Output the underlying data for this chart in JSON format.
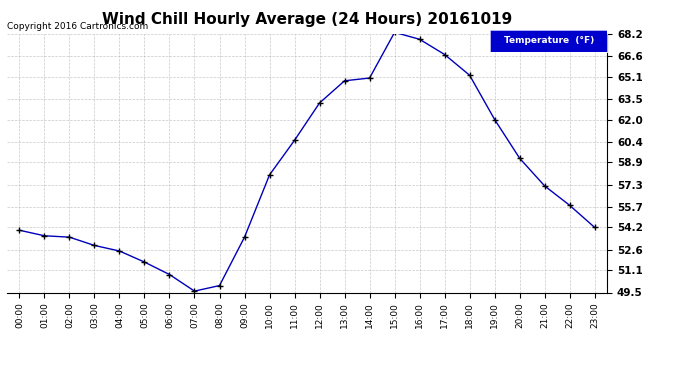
{
  "title": "Wind Chill Hourly Average (24 Hours) 20161019",
  "copyright_text": "Copyright 2016 Cartronics.com",
  "legend_label": "Temperature  (°F)",
  "x_labels": [
    "00:00",
    "01:00",
    "02:00",
    "03:00",
    "04:00",
    "05:00",
    "06:00",
    "07:00",
    "08:00",
    "09:00",
    "10:00",
    "11:00",
    "12:00",
    "13:00",
    "14:00",
    "15:00",
    "16:00",
    "17:00",
    "18:00",
    "19:00",
    "20:00",
    "21:00",
    "22:00",
    "23:00"
  ],
  "y_values": [
    54.0,
    53.6,
    53.5,
    52.9,
    52.5,
    51.7,
    50.8,
    49.6,
    50.0,
    53.5,
    58.0,
    60.5,
    63.2,
    64.8,
    65.0,
    68.3,
    67.8,
    66.7,
    65.2,
    62.0,
    59.2,
    57.2,
    55.8,
    54.2
  ],
  "ylim_min": 49.5,
  "ylim_max": 68.2,
  "yticks": [
    49.5,
    51.1,
    52.6,
    54.2,
    55.7,
    57.3,
    58.9,
    60.4,
    62.0,
    63.5,
    65.1,
    66.6,
    68.2
  ],
  "line_color": "#0000bb",
  "marker": "+",
  "marker_color": "#000000",
  "bg_color": "#ffffff",
  "grid_color": "#bbbbbb",
  "title_fontsize": 11,
  "legend_bg": "#0000cc",
  "legend_fg": "#ffffff"
}
